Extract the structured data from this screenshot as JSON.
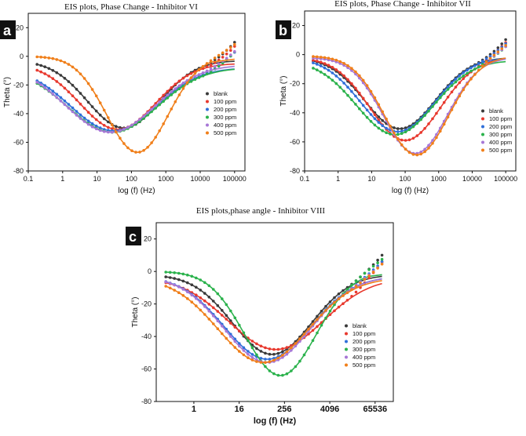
{
  "colors": {
    "blank": "#3a3a3a",
    "100 ppm": "#e8392e",
    "200 ppm": "#2f6fd9",
    "300 ppm": "#2bb24c",
    "400 ppm": "#a777d6",
    "500 ppm": "#f07f1a"
  },
  "chart_data": [
    {
      "type": "scatter",
      "panel_label": "a",
      "title": "EIS plots, Phase Change - Inhibitor VI",
      "xlabel": "log (f) (Hz)",
      "ylabel": "Theta (°)",
      "xscale": "log10",
      "xlim": [
        0.1,
        200000
      ],
      "ylim": [
        -80,
        30
      ],
      "xticks": [
        {
          "v": 0.1,
          "label": "0.1"
        },
        {
          "v": 1,
          "label": "1"
        },
        {
          "v": 10,
          "label": "10"
        },
        {
          "v": 100,
          "label": "100"
        },
        {
          "v": 1000,
          "label": "1000"
        },
        {
          "v": 10000,
          "label": "10000"
        },
        {
          "v": 100000,
          "label": "100000"
        }
      ],
      "yticks": [
        -80,
        -60,
        -40,
        -20,
        0,
        20
      ],
      "legend": [
        "blank",
        "100 ppm",
        "200 ppm",
        "300 ppm",
        "400 ppm",
        "500 ppm"
      ],
      "series": [
        {
          "name": "blank",
          "start": -3,
          "min": -50,
          "fmin": 60,
          "width": 1.05,
          "hf": 24
        },
        {
          "name": "100 ppm",
          "start": -5,
          "min": -51,
          "fmin": 40,
          "width": 1.1,
          "hf": 20
        },
        {
          "name": "200 ppm",
          "start": -8,
          "min": -52,
          "fmin": 30,
          "width": 1.25,
          "hf": 15
        },
        {
          "name": "300 ppm",
          "start": -8,
          "min": -53,
          "fmin": 28,
          "width": 1.3,
          "hf": 16
        },
        {
          "name": "400 ppm",
          "start": -6,
          "min": -53,
          "fmin": 25,
          "width": 1.3,
          "hf": 14
        },
        {
          "name": "500 ppm",
          "start": 0,
          "min": -67,
          "fmin": 150,
          "width": 0.9,
          "hf": 17
        }
      ]
    },
    {
      "type": "scatter",
      "panel_label": "b",
      "title": "EIS plots, Phase Change - Inhibitor VII",
      "xlabel": "log (f) (Hz)",
      "ylabel": "Theta (°)",
      "xscale": "log10",
      "xlim": [
        0.1,
        200000
      ],
      "ylim": [
        -80,
        30
      ],
      "xticks": [
        {
          "v": 0.1,
          "label": "0.1"
        },
        {
          "v": 1,
          "label": "1"
        },
        {
          "v": 10,
          "label": "10"
        },
        {
          "v": 100,
          "label": "100"
        },
        {
          "v": 1000,
          "label": "1000"
        },
        {
          "v": 10000,
          "label": "10000"
        },
        {
          "v": 100000,
          "label": "100000"
        }
      ],
      "yticks": [
        -80,
        -60,
        -40,
        -20,
        0,
        20
      ],
      "legend": [
        "blank",
        "100 ppm",
        "200 ppm",
        "300 ppm",
        "400 ppm",
        "500 ppm"
      ],
      "series": [
        {
          "name": "blank",
          "start": -2,
          "min": -51,
          "fmin": 70,
          "width": 1.05,
          "hf": 24
        },
        {
          "name": "100 ppm",
          "start": -2,
          "min": -59,
          "fmin": 100,
          "width": 1.05,
          "hf": 20
        },
        {
          "name": "200 ppm",
          "start": -2,
          "min": -53,
          "fmin": 60,
          "width": 1.1,
          "hf": 18
        },
        {
          "name": "300 ppm",
          "start": -4,
          "min": -55,
          "fmin": 50,
          "width": 1.15,
          "hf": 16
        },
        {
          "name": "400 ppm",
          "start": -2,
          "min": -68,
          "fmin": 200,
          "width": 0.95,
          "hf": 14
        },
        {
          "name": "500 ppm",
          "start": -1,
          "min": -69,
          "fmin": 220,
          "width": 0.95,
          "hf": 15
        }
      ]
    },
    {
      "type": "scatter",
      "panel_label": "c",
      "title": "EIS plots,phase angle - Inhibitor VIII",
      "xlabel": "log (f) (Hz)",
      "ylabel": "Theta (°)",
      "xscale": "log2",
      "xlim": [
        0.1,
        200000
      ],
      "ylim": [
        -80,
        30
      ],
      "xticks": [
        {
          "v": 1,
          "label": "1"
        },
        {
          "v": 16,
          "label": "16"
        },
        {
          "v": 256,
          "label": "256"
        },
        {
          "v": 4096,
          "label": "4096"
        },
        {
          "v": 65536,
          "label": "65536"
        }
      ],
      "yticks": [
        -80,
        -60,
        -40,
        -20,
        0,
        20
      ],
      "legend": [
        "blank",
        "100 ppm",
        "200 ppm",
        "300 ppm",
        "400 ppm",
        "500 ppm"
      ],
      "series": [
        {
          "name": "blank",
          "start": -2,
          "min": -51,
          "fmin": 120,
          "width": 1.05,
          "hf": 24
        },
        {
          "name": "100 ppm",
          "start": -4,
          "min": -48,
          "fmin": 150,
          "width": 1.25,
          "hf": 20
        },
        {
          "name": "200 ppm",
          "start": -3,
          "min": -54,
          "fmin": 90,
          "width": 1.15,
          "hf": 17
        },
        {
          "name": "300 ppm",
          "start": 0,
          "min": -64,
          "fmin": 200,
          "width": 0.95,
          "hf": 16
        },
        {
          "name": "400 ppm",
          "start": -3,
          "min": -56,
          "fmin": 90,
          "width": 1.15,
          "hf": 14
        },
        {
          "name": "500 ppm",
          "start": -4,
          "min": -56,
          "fmin": 70,
          "width": 1.2,
          "hf": 15
        }
      ]
    }
  ]
}
